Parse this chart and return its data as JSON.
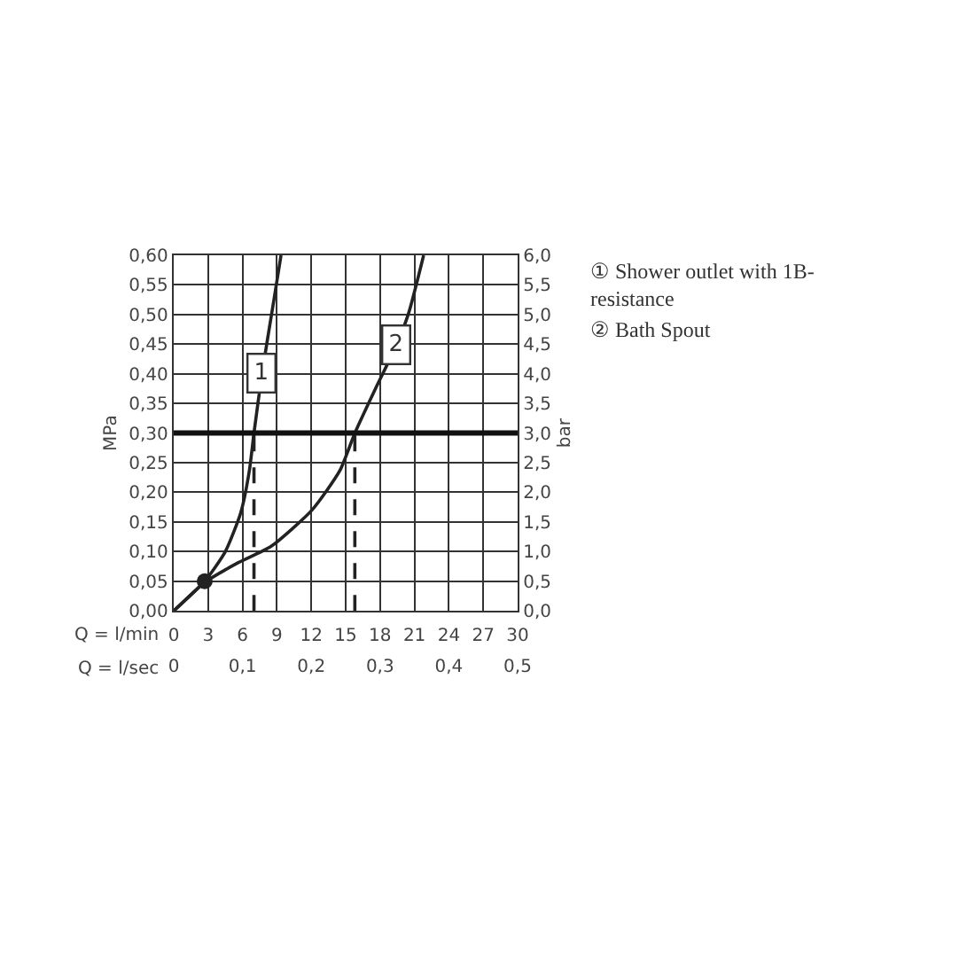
{
  "chart_data": {
    "type": "line",
    "xlabel": "Q = l/min",
    "x2label": "Q = l/sec",
    "ylabel": "MPa",
    "y2label": "bar",
    "xlim": [
      0,
      30
    ],
    "xticks": [
      0,
      3,
      6,
      9,
      12,
      15,
      18,
      21,
      24,
      27,
      30
    ],
    "x2lim": [
      0,
      0.5
    ],
    "x2ticks": [
      0,
      {
        "value": 0.1,
        "label": "0,1"
      },
      {
        "value": 0.2,
        "label": "0,2"
      },
      {
        "value": 0.3,
        "label": "0,3"
      },
      {
        "value": 0.4,
        "label": "0,4"
      },
      {
        "value": 0.5,
        "label": "0,5"
      }
    ],
    "ylim": [
      0,
      0.6
    ],
    "yticks": [
      {
        "value": 0,
        "label": "0,00"
      },
      {
        "value": 0.05,
        "label": "0,05"
      },
      {
        "value": 0.1,
        "label": "0,10"
      },
      {
        "value": 0.15,
        "label": "0,15"
      },
      {
        "value": 0.2,
        "label": "0,20"
      },
      {
        "value": 0.25,
        "label": "0,25"
      },
      {
        "value": 0.3,
        "label": "0,30"
      },
      {
        "value": 0.35,
        "label": "0,35"
      },
      {
        "value": 0.4,
        "label": "0,40"
      },
      {
        "value": 0.45,
        "label": "0,45"
      },
      {
        "value": 0.5,
        "label": "0,50"
      },
      {
        "value": 0.55,
        "label": "0,55"
      },
      {
        "value": 0.6,
        "label": "0,60"
      }
    ],
    "y2lim": [
      0,
      6
    ],
    "y2ticks": [
      {
        "value": 0,
        "label": "0,0"
      },
      {
        "value": 0.5,
        "label": "0,5"
      },
      {
        "value": 1,
        "label": "1,0"
      },
      {
        "value": 1.5,
        "label": "1,5"
      },
      {
        "value": 2,
        "label": "2,0"
      },
      {
        "value": 2.5,
        "label": "2,5"
      },
      {
        "value": 3,
        "label": "3,0"
      },
      {
        "value": 3.5,
        "label": "3,5"
      },
      {
        "value": 4,
        "label": "4,0"
      },
      {
        "value": 4.5,
        "label": "4,5"
      },
      {
        "value": 5,
        "label": "5,0"
      },
      {
        "value": 5.5,
        "label": "5,5"
      },
      {
        "value": 6,
        "label": "6,0"
      }
    ],
    "grid": true,
    "marker": "none",
    "series": [
      {
        "color": "#222222",
        "x": [
          0,
          2.7,
          4.5,
          5.85,
          6.6,
          7.0,
          7.7,
          8.7,
          9.36
        ],
        "values": [
          0,
          0.05,
          0.1,
          0.166,
          0.237,
          0.3,
          0.4,
          0.52,
          0.6
        ]
      },
      {
        "color": "#222222",
        "x": [
          0,
          2.7,
          5.5,
          8.5,
          12.1,
          14.5,
          15.8,
          17.6,
          19.4,
          20.5,
          21.8
        ],
        "values": [
          0,
          0.048,
          0.08,
          0.109,
          0.171,
          0.237,
          0.3,
          0.375,
          0.447,
          0.503,
          0.6
        ]
      },
      {
        "color": "#222222",
        "line_style": "dashed",
        "x": [
          7.0,
          7.0
        ],
        "values": [
          0,
          0.3
        ]
      },
      {
        "color": "#222222",
        "line_style": "dashed",
        "x": [
          15.8,
          15.8
        ],
        "values": [
          0,
          0.3
        ]
      },
      {
        "type": "scatter",
        "marker": "circle",
        "color": "#222222",
        "x": [
          2.7
        ],
        "values": [
          0.05
        ]
      }
    ],
    "ref_lines": [
      {
        "axis": "y",
        "value": 0.3,
        "color": "#111111"
      }
    ],
    "annotations": [
      {
        "text": "1",
        "x": 7.7,
        "y": 0.4
      },
      {
        "text": "2",
        "x": 19.4,
        "y": 0.45
      },
      "① Shower outlet with 1B-resistance",
      "② Bath Spout"
    ]
  }
}
